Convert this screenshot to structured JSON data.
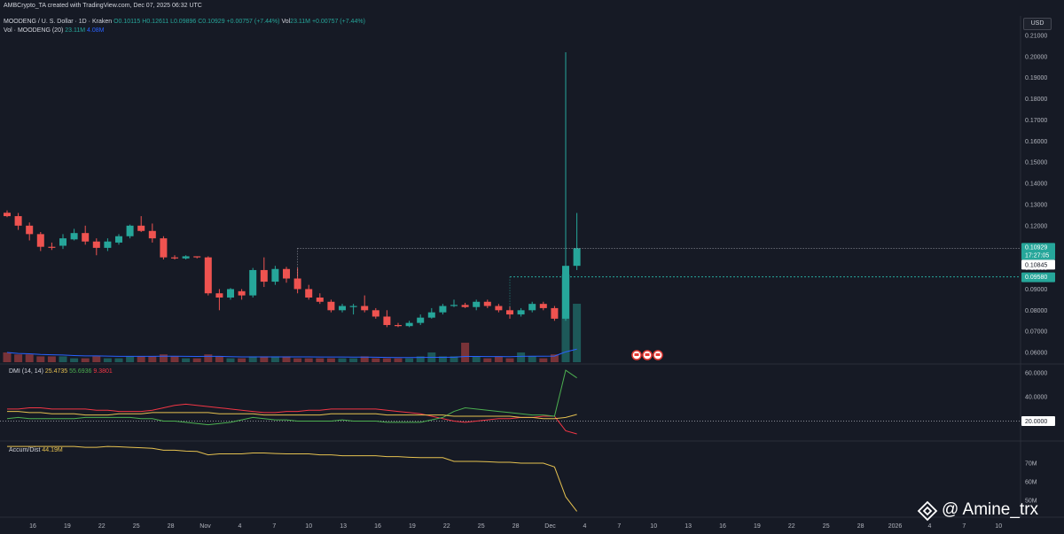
{
  "header": {
    "published": "AMBCrypto_TA created with TradingView.com, Dec 07, 2025 06:32 UTC",
    "symbol": "MOODENG / U. S. Dollar · 1D · Kraken",
    "ohlc_o": "O0.10115",
    "ohlc_h": "H0.12611",
    "ohlc_l": "L0.09896",
    "ohlc_c": "C0.10929",
    "ohlc_change": "+0.00757 (+7.44%)",
    "vol_label": "Vol",
    "vol_value": "23.11M",
    "vol_change": "+0.00757 (+7.44%)",
    "vol_indicator": "Vol · MOODENG (20)",
    "vol_indicator_v1": "23.11M",
    "vol_indicator_v2": "4.08M",
    "currency_button": "USD"
  },
  "dmi": {
    "label": "DMI (14, 14)",
    "adx": "25.4735",
    "plus_di": "55.6936",
    "minus_di": "9.3801"
  },
  "accum": {
    "label": "Accum/Dist",
    "value": "44.19M"
  },
  "watermark": {
    "text": "@ Amine_trx",
    "icon": "binance-square-icon"
  },
  "colors": {
    "up": "#26a69a",
    "down": "#ef5350",
    "background": "#161a25",
    "adx": "#e5c150",
    "plus_di": "#4caf50",
    "minus_di": "#f23645",
    "accum": "#e5c150",
    "vol_ma": "#2962ff"
  },
  "chart_data": {
    "type": "candlestick",
    "price_axis": [
      "0.21000",
      "0.20000",
      "0.19000",
      "0.18000",
      "0.17000",
      "0.16000",
      "0.15000",
      "0.14000",
      "0.13000",
      "0.12000",
      "0.11000",
      "0.10000",
      "0.09000",
      "0.08000",
      "0.07000",
      "0.06000"
    ],
    "price_range": [
      0.055,
      0.215
    ],
    "price_labels": {
      "last": "0.10929",
      "countdown": "17:27:05",
      "level_2": "0.10845",
      "level_3": "0.09580"
    },
    "horizontal_levels": [
      0.10929,
      0.0958
    ],
    "x_ticks": [
      "16",
      "19",
      "22",
      "25",
      "28",
      "Nov",
      "4",
      "7",
      "10",
      "13",
      "16",
      "19",
      "22",
      "25",
      "28",
      "Dec",
      "4",
      "7",
      "10",
      "13",
      "16",
      "19",
      "22",
      "25",
      "28",
      "2026",
      "4",
      "7",
      "10"
    ],
    "candles": [
      {
        "o": 0.1261,
        "h": 0.1272,
        "l": 0.124,
        "c": 0.1245
      },
      {
        "o": 0.1245,
        "h": 0.126,
        "l": 0.118,
        "c": 0.12
      },
      {
        "o": 0.12,
        "h": 0.1215,
        "l": 0.113,
        "c": 0.116
      },
      {
        "o": 0.116,
        "h": 0.117,
        "l": 0.108,
        "c": 0.11
      },
      {
        "o": 0.11,
        "h": 0.112,
        "l": 0.1085,
        "c": 0.1095
      },
      {
        "o": 0.1105,
        "h": 0.116,
        "l": 0.109,
        "c": 0.114
      },
      {
        "o": 0.1135,
        "h": 0.1185,
        "l": 0.113,
        "c": 0.1165
      },
      {
        "o": 0.1165,
        "h": 0.12,
        "l": 0.111,
        "c": 0.1125
      },
      {
        "o": 0.1125,
        "h": 0.114,
        "l": 0.106,
        "c": 0.1095
      },
      {
        "o": 0.1095,
        "h": 0.114,
        "l": 0.108,
        "c": 0.1125
      },
      {
        "o": 0.112,
        "h": 0.116,
        "l": 0.111,
        "c": 0.115
      },
      {
        "o": 0.115,
        "h": 0.1205,
        "l": 0.114,
        "c": 0.12
      },
      {
        "o": 0.12,
        "h": 0.1245,
        "l": 0.117,
        "c": 0.1175
      },
      {
        "o": 0.1175,
        "h": 0.121,
        "l": 0.112,
        "c": 0.114
      },
      {
        "o": 0.114,
        "h": 0.115,
        "l": 0.104,
        "c": 0.105
      },
      {
        "o": 0.105,
        "h": 0.106,
        "l": 0.104,
        "c": 0.1045
      },
      {
        "o": 0.1045,
        "h": 0.106,
        "l": 0.104,
        "c": 0.1055
      },
      {
        "o": 0.1055,
        "h": 0.1055,
        "l": 0.1045,
        "c": 0.105
      },
      {
        "o": 0.105,
        "h": 0.1055,
        "l": 0.087,
        "c": 0.088
      },
      {
        "o": 0.088,
        "h": 0.09,
        "l": 0.08,
        "c": 0.086
      },
      {
        "o": 0.086,
        "h": 0.0905,
        "l": 0.085,
        "c": 0.09
      },
      {
        "o": 0.089,
        "h": 0.09,
        "l": 0.085,
        "c": 0.087
      },
      {
        "o": 0.087,
        "h": 0.1,
        "l": 0.086,
        "c": 0.099
      },
      {
        "o": 0.099,
        "h": 0.105,
        "l": 0.091,
        "c": 0.0935
      },
      {
        "o": 0.0935,
        "h": 0.101,
        "l": 0.092,
        "c": 0.0995
      },
      {
        "o": 0.0995,
        "h": 0.1005,
        "l": 0.093,
        "c": 0.095
      },
      {
        "o": 0.095,
        "h": 0.1,
        "l": 0.088,
        "c": 0.09
      },
      {
        "o": 0.09,
        "h": 0.092,
        "l": 0.085,
        "c": 0.086
      },
      {
        "o": 0.086,
        "h": 0.088,
        "l": 0.083,
        "c": 0.084
      },
      {
        "o": 0.084,
        "h": 0.085,
        "l": 0.079,
        "c": 0.08
      },
      {
        "o": 0.08,
        "h": 0.083,
        "l": 0.079,
        "c": 0.082
      },
      {
        "o": 0.0815,
        "h": 0.083,
        "l": 0.078,
        "c": 0.082
      },
      {
        "o": 0.082,
        "h": 0.087,
        "l": 0.079,
        "c": 0.08
      },
      {
        "o": 0.08,
        "h": 0.081,
        "l": 0.076,
        "c": 0.077
      },
      {
        "o": 0.077,
        "h": 0.08,
        "l": 0.072,
        "c": 0.073
      },
      {
        "o": 0.073,
        "h": 0.074,
        "l": 0.072,
        "c": 0.0725
      },
      {
        "o": 0.0725,
        "h": 0.075,
        "l": 0.072,
        "c": 0.074
      },
      {
        "o": 0.074,
        "h": 0.078,
        "l": 0.073,
        "c": 0.0765
      },
      {
        "o": 0.0765,
        "h": 0.081,
        "l": 0.076,
        "c": 0.079
      },
      {
        "o": 0.079,
        "h": 0.083,
        "l": 0.078,
        "c": 0.082
      },
      {
        "o": 0.082,
        "h": 0.085,
        "l": 0.0815,
        "c": 0.0825
      },
      {
        "o": 0.0825,
        "h": 0.0835,
        "l": 0.081,
        "c": 0.0815
      },
      {
        "o": 0.0815,
        "h": 0.085,
        "l": 0.08,
        "c": 0.084
      },
      {
        "o": 0.084,
        "h": 0.085,
        "l": 0.081,
        "c": 0.082
      },
      {
        "o": 0.082,
        "h": 0.083,
        "l": 0.079,
        "c": 0.08
      },
      {
        "o": 0.08,
        "h": 0.082,
        "l": 0.076,
        "c": 0.078
      },
      {
        "o": 0.078,
        "h": 0.081,
        "l": 0.077,
        "c": 0.08
      },
      {
        "o": 0.08,
        "h": 0.084,
        "l": 0.079,
        "c": 0.083
      },
      {
        "o": 0.083,
        "h": 0.084,
        "l": 0.08,
        "c": 0.081
      },
      {
        "o": 0.081,
        "h": 0.082,
        "l": 0.075,
        "c": 0.076
      },
      {
        "o": 0.076,
        "h": 0.202,
        "l": 0.075,
        "c": 0.101
      },
      {
        "o": 0.101,
        "h": 0.126,
        "l": 0.099,
        "c": 0.1093
      }
    ],
    "volume": [
      5,
      4,
      4,
      3,
      3,
      3,
      2,
      2,
      3,
      2,
      2,
      3,
      3,
      3,
      4,
      3,
      2,
      2,
      4,
      3,
      2,
      2,
      3,
      3,
      3,
      3,
      2,
      2,
      2,
      2,
      2,
      2,
      3,
      2,
      2,
      2,
      2,
      3,
      5,
      3,
      3,
      10,
      3,
      2,
      3,
      2,
      5,
      3,
      2,
      4,
      45,
      30
    ],
    "dmi_series": {
      "adx": [
        28,
        28,
        27,
        27,
        26,
        26,
        26,
        25,
        25,
        25,
        26,
        26,
        26,
        27,
        27,
        27,
        27,
        27,
        27,
        26,
        26,
        26,
        26,
        25,
        25,
        25,
        25,
        25,
        25,
        26,
        26,
        26,
        26,
        26,
        25,
        25,
        25,
        25,
        25,
        25,
        24,
        24,
        24,
        24,
        24,
        24,
        23,
        23,
        22,
        22,
        23,
        25.47
      ],
      "plus_di": [
        22,
        23,
        22,
        22,
        22,
        22,
        22,
        23,
        23,
        23,
        23,
        23,
        22,
        22,
        20,
        20,
        19,
        18,
        17,
        18,
        19,
        21,
        23,
        22,
        21,
        21,
        20,
        20,
        20,
        20,
        21,
        20,
        20,
        20,
        19,
        19,
        19,
        19,
        21,
        23,
        28,
        31,
        30,
        29,
        28,
        27,
        26,
        25,
        25,
        24,
        62,
        55.69
      ],
      "minus_di": [
        30,
        30,
        31,
        31,
        30,
        30,
        30,
        30,
        29,
        29,
        28,
        28,
        28,
        29,
        31,
        33,
        34,
        33,
        32,
        31,
        30,
        29,
        28,
        27,
        27,
        28,
        28,
        29,
        29,
        30,
        30,
        30,
        30,
        30,
        29,
        28,
        27,
        26,
        24,
        22,
        20,
        19,
        20,
        21,
        22,
        22,
        23,
        23,
        24,
        24,
        12,
        9.38
      ]
    },
    "dmi_axis": [
      "60.0000",
      "40.0000",
      "20.0000"
    ],
    "dmi_range": [
      5,
      65
    ],
    "accum_series": [
      79,
      79,
      79,
      79,
      79,
      79,
      79,
      78.5,
      78.5,
      79,
      78.8,
      78.5,
      78.3,
      78,
      77,
      77,
      76.5,
      76.3,
      74.5,
      75,
      75,
      75,
      75.5,
      75.5,
      75.2,
      75,
      75,
      75,
      74.5,
      74.5,
      74,
      74,
      74,
      74,
      73.5,
      73.5,
      73.2,
      73,
      73,
      73,
      71,
      71,
      71,
      70.8,
      70.5,
      70.5,
      70,
      70,
      70,
      68,
      52,
      44.19
    ],
    "accum_axis": [
      "70M",
      "60M",
      "50M"
    ],
    "accum_range": [
      42,
      80
    ]
  }
}
